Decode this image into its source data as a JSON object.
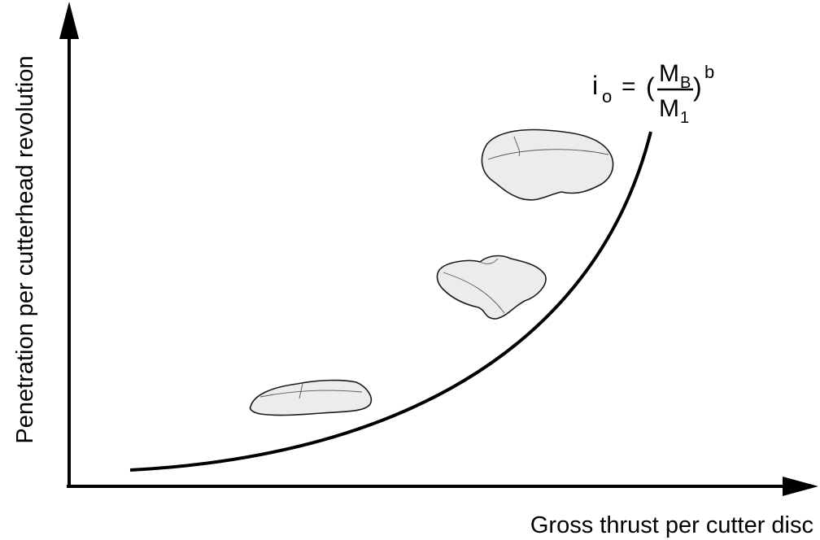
{
  "axes": {
    "y_label": "Penetration per cutterhead revolution",
    "x_label": "Gross thrust per cutter disc"
  },
  "formula": {
    "lhs": "i",
    "lhs_sub": "o",
    "equals": "=",
    "open": "(",
    "numerator": "M",
    "numerator_sub": "B",
    "denominator": "M",
    "denominator_sub": "1",
    "close": ")",
    "exponent": "b"
  }
}
